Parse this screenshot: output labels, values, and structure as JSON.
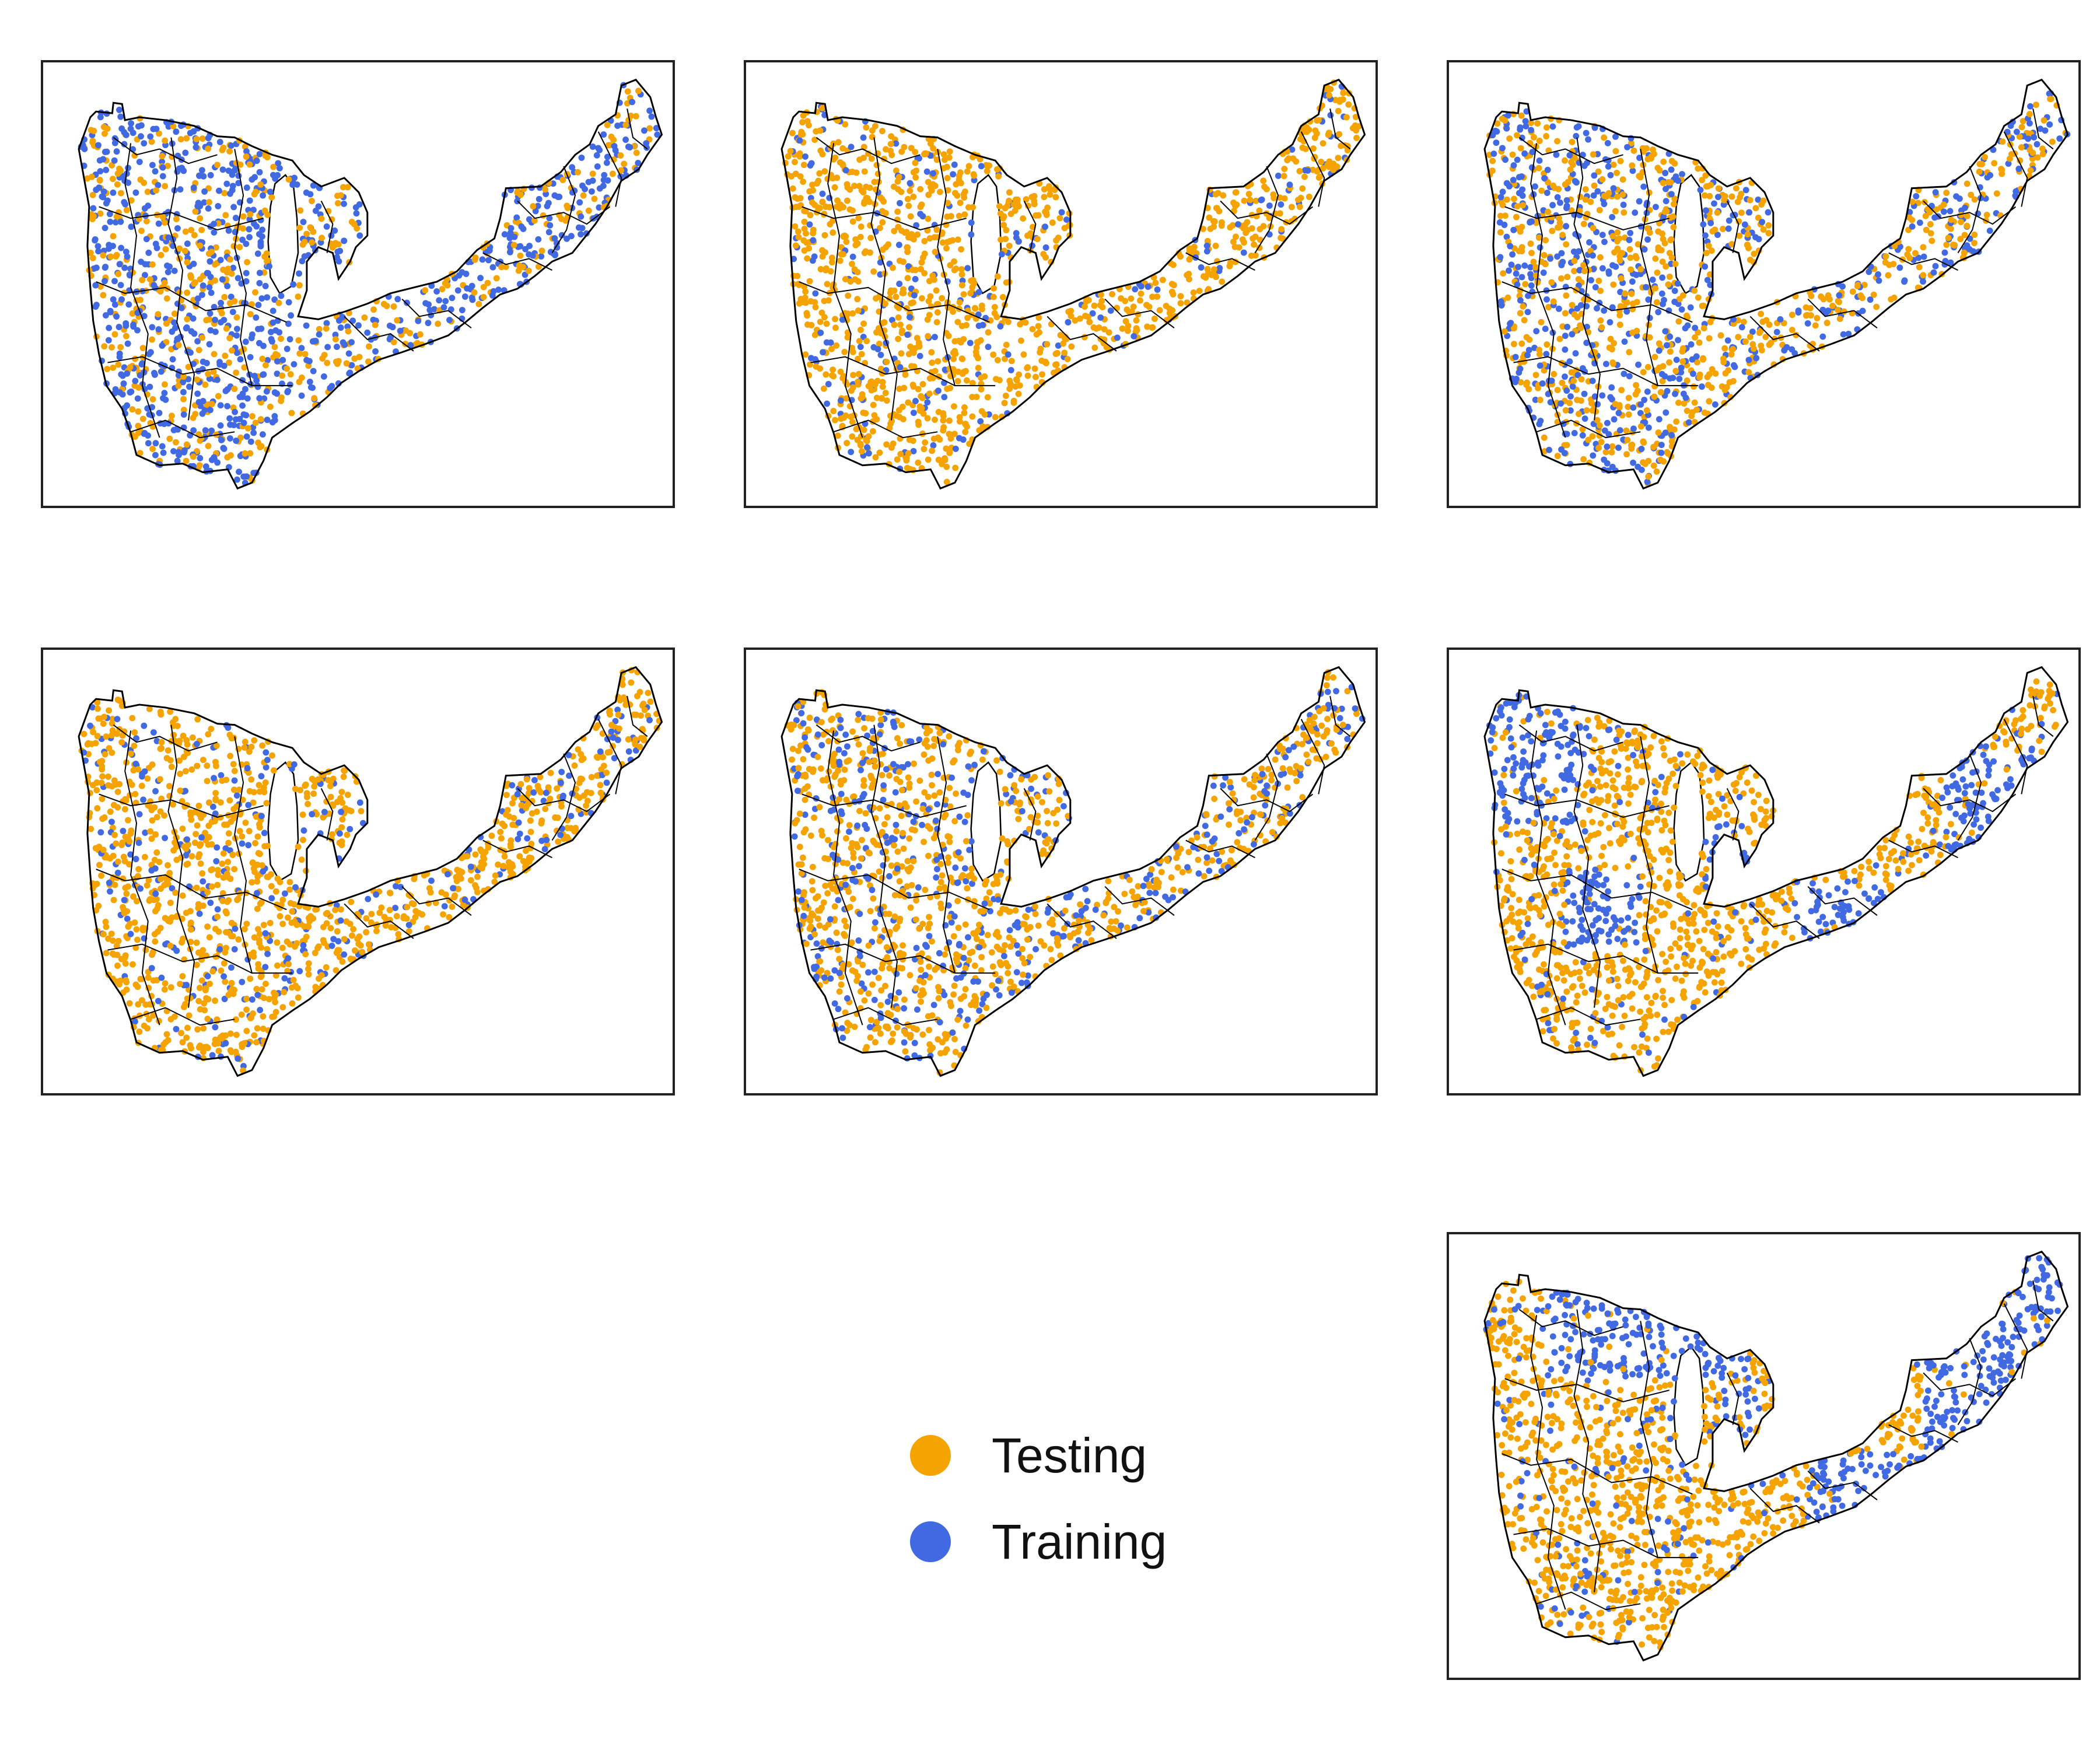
{
  "colors": {
    "testing": "#F5A300",
    "training": "#4169E1",
    "outline": "#000000",
    "frame": "#222222"
  },
  "legend": {
    "items": [
      {
        "label": "Testing",
        "color": "#F5A300"
      },
      {
        "label": "Training",
        "color": "#4169E1"
      }
    ]
  },
  "panels": [
    {
      "training_fraction": 0.6,
      "pattern": "random"
    },
    {
      "training_fraction": 0.15,
      "pattern": "random"
    },
    {
      "training_fraction": 0.45,
      "pattern": "random"
    },
    {
      "training_fraction": 0.2,
      "pattern": "random"
    },
    {
      "training_fraction": 0.3,
      "pattern": "random"
    },
    {
      "training_fraction": 0.4,
      "pattern": "regional"
    },
    {
      "training_fraction": 0.5,
      "pattern": "regional"
    }
  ]
}
